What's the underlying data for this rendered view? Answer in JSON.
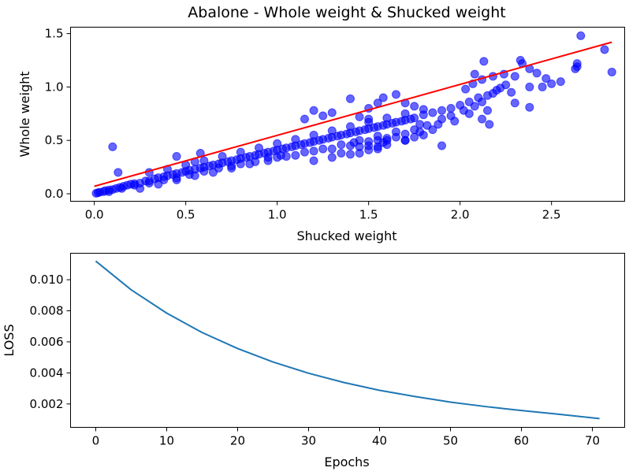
{
  "chart_data": [
    {
      "type": "scatter",
      "title": "Abalone - Whole weight & Shucked weight",
      "xlabel": "Shucked weight",
      "ylabel": "Whole weight",
      "xlim": [
        -0.13,
        2.9
      ],
      "ylim": [
        -0.07,
        1.56
      ],
      "xticks": [
        0.0,
        0.5,
        1.0,
        1.5,
        2.0,
        2.5
      ],
      "xtick_labels": [
        "0.0",
        "0.5",
        "1.0",
        "1.5",
        "2.0",
        "2.5"
      ],
      "yticks": [
        0.0,
        0.5,
        1.0,
        1.5
      ],
      "ytick_labels": [
        "0.0",
        "0.5",
        "1.0",
        "1.5"
      ],
      "grid": false,
      "legend": "none",
      "point_color": "#0000ff",
      "line_color": "#ff0000",
      "fit_line": {
        "x": [
          0.0,
          2.83
        ],
        "y": [
          0.07,
          1.42
        ]
      },
      "points": [
        [
          0.01,
          0.005
        ],
        [
          0.02,
          0.01
        ],
        [
          0.03,
          0.015
        ],
        [
          0.05,
          0.02
        ],
        [
          0.06,
          0.03
        ],
        [
          0.08,
          0.035
        ],
        [
          0.1,
          0.04
        ],
        [
          0.12,
          0.05
        ],
        [
          0.14,
          0.06
        ],
        [
          0.16,
          0.07
        ],
        [
          0.18,
          0.08
        ],
        [
          0.2,
          0.09
        ],
        [
          0.22,
          0.095
        ],
        [
          0.25,
          0.1
        ],
        [
          0.28,
          0.12
        ],
        [
          0.3,
          0.12
        ],
        [
          0.33,
          0.14
        ],
        [
          0.35,
          0.15
        ],
        [
          0.38,
          0.16
        ],
        [
          0.4,
          0.17
        ],
        [
          0.43,
          0.18
        ],
        [
          0.45,
          0.19
        ],
        [
          0.48,
          0.2
        ],
        [
          0.5,
          0.21
        ],
        [
          0.52,
          0.22
        ],
        [
          0.55,
          0.23
        ],
        [
          0.58,
          0.24
        ],
        [
          0.6,
          0.25
        ],
        [
          0.63,
          0.26
        ],
        [
          0.65,
          0.27
        ],
        [
          0.68,
          0.28
        ],
        [
          0.7,
          0.29
        ],
        [
          0.73,
          0.3
        ],
        [
          0.75,
          0.31
        ],
        [
          0.78,
          0.32
        ],
        [
          0.8,
          0.33
        ],
        [
          0.83,
          0.34
        ],
        [
          0.85,
          0.35
        ],
        [
          0.88,
          0.36
        ],
        [
          0.9,
          0.37
        ],
        [
          0.93,
          0.38
        ],
        [
          0.95,
          0.39
        ],
        [
          0.98,
          0.4
        ],
        [
          1.0,
          0.41
        ],
        [
          1.03,
          0.42
        ],
        [
          1.05,
          0.43
        ],
        [
          1.08,
          0.44
        ],
        [
          1.1,
          0.45
        ],
        [
          1.13,
          0.46
        ],
        [
          1.15,
          0.47
        ],
        [
          1.18,
          0.48
        ],
        [
          1.2,
          0.49
        ],
        [
          1.23,
          0.5
        ],
        [
          1.25,
          0.51
        ],
        [
          1.28,
          0.52
        ],
        [
          1.3,
          0.53
        ],
        [
          1.33,
          0.54
        ],
        [
          1.35,
          0.55
        ],
        [
          1.38,
          0.56
        ],
        [
          1.4,
          0.57
        ],
        [
          1.43,
          0.58
        ],
        [
          1.45,
          0.59
        ],
        [
          1.48,
          0.6
        ],
        [
          1.5,
          0.61
        ],
        [
          1.53,
          0.62
        ],
        [
          1.55,
          0.63
        ],
        [
          1.58,
          0.64
        ],
        [
          1.6,
          0.65
        ],
        [
          1.63,
          0.66
        ],
        [
          1.65,
          0.67
        ],
        [
          1.68,
          0.68
        ],
        [
          1.7,
          0.69
        ],
        [
          1.73,
          0.7
        ],
        [
          1.75,
          0.71
        ],
        [
          1.8,
          0.74
        ],
        [
          1.85,
          0.76
        ],
        [
          1.9,
          0.78
        ],
        [
          1.95,
          0.8
        ],
        [
          2.0,
          0.83
        ],
        [
          2.05,
          0.86
        ],
        [
          0.3,
          0.2
        ],
        [
          0.4,
          0.23
        ],
        [
          0.5,
          0.27
        ],
        [
          0.6,
          0.31
        ],
        [
          0.7,
          0.35
        ],
        [
          0.8,
          0.39
        ],
        [
          0.9,
          0.43
        ],
        [
          1.0,
          0.47
        ],
        [
          1.1,
          0.51
        ],
        [
          1.2,
          0.55
        ],
        [
          1.3,
          0.59
        ],
        [
          1.4,
          0.63
        ],
        [
          1.5,
          0.67
        ],
        [
          1.6,
          0.71
        ],
        [
          1.7,
          0.75
        ],
        [
          1.8,
          0.79
        ],
        [
          0.25,
          0.05
        ],
        [
          0.35,
          0.09
        ],
        [
          0.45,
          0.13
        ],
        [
          0.55,
          0.17
        ],
        [
          0.65,
          0.2
        ],
        [
          0.75,
          0.24
        ],
        [
          0.85,
          0.28
        ],
        [
          0.95,
          0.31
        ],
        [
          1.05,
          0.35
        ],
        [
          1.15,
          0.39
        ],
        [
          1.25,
          0.42
        ],
        [
          1.35,
          0.46
        ],
        [
          1.45,
          0.5
        ],
        [
          1.55,
          0.54
        ],
        [
          1.65,
          0.58
        ],
        [
          1.0,
          0.34
        ],
        [
          1.1,
          0.36
        ],
        [
          1.2,
          0.4
        ],
        [
          1.3,
          0.42
        ],
        [
          1.4,
          0.45
        ],
        [
          1.5,
          0.49
        ],
        [
          1.6,
          0.52
        ],
        [
          1.7,
          0.56
        ],
        [
          1.2,
          0.31
        ],
        [
          1.3,
          0.34
        ],
        [
          1.4,
          0.37
        ],
        [
          1.45,
          0.38
        ],
        [
          1.5,
          0.41
        ],
        [
          1.55,
          0.44
        ],
        [
          1.6,
          0.46
        ],
        [
          1.7,
          0.5
        ],
        [
          1.75,
          0.53
        ],
        [
          1.78,
          0.58
        ],
        [
          1.82,
          0.64
        ],
        [
          1.9,
          0.7
        ],
        [
          1.95,
          0.73
        ],
        [
          1.97,
          0.68
        ],
        [
          2.02,
          0.78
        ],
        [
          2.08,
          0.82
        ],
        [
          2.1,
          0.9
        ],
        [
          2.12,
          0.86
        ],
        [
          2.15,
          0.92
        ],
        [
          2.18,
          0.94
        ],
        [
          2.2,
          0.97
        ],
        [
          2.22,
          0.99
        ],
        [
          2.25,
          1.02
        ],
        [
          2.28,
          0.95
        ],
        [
          2.3,
          0.85
        ],
        [
          2.03,
          0.98
        ],
        [
          2.07,
          1.03
        ],
        [
          2.12,
          1.07
        ],
        [
          2.18,
          1.1
        ],
        [
          2.24,
          1.12
        ],
        [
          2.3,
          1.1
        ],
        [
          2.33,
          1.25
        ],
        [
          2.34,
          1.22
        ],
        [
          2.38,
          1.17
        ],
        [
          2.42,
          1.13
        ],
        [
          2.47,
          1.08
        ],
        [
          2.13,
          1.24
        ],
        [
          2.08,
          1.12
        ],
        [
          2.15,
          0.78
        ],
        [
          2.16,
          0.65
        ],
        [
          2.38,
          1.0
        ],
        [
          2.45,
          1.0
        ],
        [
          2.5,
          1.03
        ],
        [
          2.55,
          1.05
        ],
        [
          2.63,
          1.17
        ],
        [
          2.64,
          1.19
        ],
        [
          2.64,
          1.22
        ],
        [
          2.66,
          1.48
        ],
        [
          2.79,
          1.35
        ],
        [
          2.83,
          1.14
        ],
        [
          2.38,
          0.81
        ],
        [
          2.12,
          0.7
        ],
        [
          2.05,
          0.75
        ],
        [
          1.9,
          0.45
        ],
        [
          1.85,
          0.6
        ],
        [
          1.88,
          0.65
        ],
        [
          1.8,
          0.55
        ],
        [
          1.78,
          0.65
        ],
        [
          1.75,
          0.6
        ],
        [
          1.65,
          0.53
        ],
        [
          1.6,
          0.5
        ],
        [
          1.7,
          0.5
        ],
        [
          1.55,
          0.5
        ],
        [
          1.5,
          0.45
        ],
        [
          1.42,
          0.48
        ],
        [
          1.5,
          0.7
        ],
        [
          1.45,
          0.72
        ],
        [
          1.5,
          0.8
        ],
        [
          1.55,
          0.85
        ],
        [
          1.58,
          0.9
        ],
        [
          1.65,
          0.93
        ],
        [
          1.7,
          0.85
        ],
        [
          1.75,
          0.82
        ],
        [
          1.4,
          0.89
        ],
        [
          1.3,
          0.76
        ],
        [
          1.25,
          0.73
        ],
        [
          1.2,
          0.78
        ],
        [
          1.15,
          0.7
        ],
        [
          1.35,
          0.38
        ],
        [
          1.45,
          0.44
        ],
        [
          1.55,
          0.42
        ],
        [
          1.58,
          0.48
        ],
        [
          1.02,
          0.36
        ],
        [
          0.95,
          0.34
        ],
        [
          0.88,
          0.3
        ],
        [
          0.8,
          0.28
        ],
        [
          0.75,
          0.26
        ],
        [
          0.68,
          0.24
        ],
        [
          0.6,
          0.21
        ],
        [
          0.52,
          0.18
        ],
        [
          0.45,
          0.15
        ],
        [
          0.38,
          0.13
        ],
        [
          0.3,
          0.1
        ],
        [
          0.22,
          0.08
        ],
        [
          0.15,
          0.05
        ],
        [
          0.08,
          0.02
        ],
        [
          0.1,
          0.44
        ],
        [
          0.13,
          0.2
        ],
        [
          0.45,
          0.35
        ],
        [
          0.55,
          0.3
        ],
        [
          0.58,
          0.38
        ]
      ]
    },
    {
      "type": "line",
      "title": "",
      "xlabel": "Epochs",
      "ylabel": "LOSS",
      "xlim": [
        -3.55,
        74.55
      ],
      "ylim": [
        0.000495,
        0.011705
      ],
      "xticks": [
        0,
        10,
        20,
        30,
        40,
        50,
        60,
        70
      ],
      "xtick_labels": [
        "0",
        "10",
        "20",
        "30",
        "40",
        "50",
        "60",
        "70"
      ],
      "yticks": [
        0.002,
        0.004,
        0.006,
        0.008,
        0.01
      ],
      "ytick_labels": [
        "0.002",
        "0.004",
        "0.006",
        "0.008",
        "0.010"
      ],
      "grid": false,
      "legend": "none",
      "line_color": "#1f77b4",
      "x": [
        0,
        5,
        10,
        15,
        20,
        25,
        30,
        35,
        40,
        45,
        50,
        55,
        60,
        65,
        71
      ],
      "y": [
        0.0112,
        0.00935,
        0.00785,
        0.0066,
        0.00557,
        0.0047,
        0.00398,
        0.00338,
        0.00288,
        0.00248,
        0.00212,
        0.00183,
        0.00158,
        0.00135,
        0.00106
      ]
    }
  ]
}
